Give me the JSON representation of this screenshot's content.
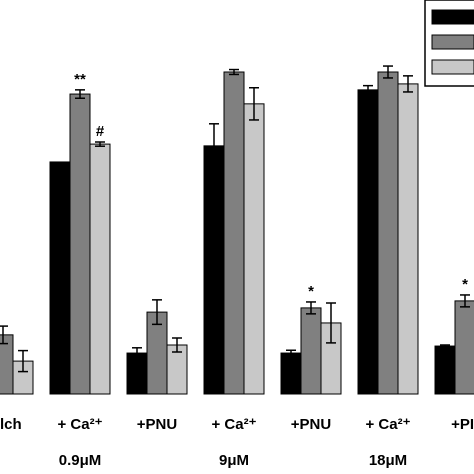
{
  "chart_data": {
    "type": "bar",
    "categories": [
      "lch",
      "+ Ca²⁺",
      "+PNU",
      "+ Ca²⁺",
      "+PNU",
      "+ Ca²⁺",
      "+PI"
    ],
    "category_sublabels": [
      null,
      "0.9μM",
      null,
      "9μM",
      null,
      "18μM",
      null
    ],
    "ylim": [
      0,
      100
    ],
    "series": [
      {
        "color": "#000000",
        "values": [
          null,
          66.3,
          11.7,
          70.9,
          11.7,
          86.9,
          13.7
        ],
        "errors": [
          null,
          null,
          1.5,
          6.3,
          0.8,
          1.2,
          0.3
        ],
        "annotations": [
          null,
          null,
          null,
          null,
          null,
          null,
          null
        ]
      },
      {
        "color": "#808080",
        "values": [
          16.9,
          85.7,
          23.4,
          92,
          24.6,
          92,
          26.6
        ],
        "errors": [
          2.5,
          1.2,
          3.5,
          0.7,
          1.7,
          1.7,
          1.7
        ],
        "annotations": [
          null,
          "**",
          null,
          null,
          "*",
          null,
          "*"
        ]
      },
      {
        "color": "#c8c8c8",
        "values": [
          9.4,
          71.4,
          14,
          82.9,
          20.3,
          88.6,
          null
        ],
        "errors": [
          3,
          0.6,
          2,
          4.6,
          5.7,
          2.3,
          null
        ],
        "annotations": [
          null,
          "#",
          null,
          null,
          null,
          null,
          null
        ]
      }
    ]
  }
}
